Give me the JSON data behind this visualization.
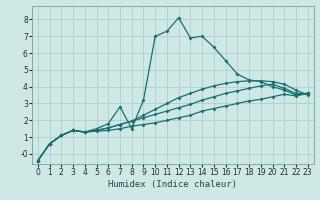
{
  "xlabel": "Humidex (Indice chaleur)",
  "bg_color": "#cde8e5",
  "grid_color": "#b0cfcc",
  "line_color": "#1a7070",
  "xlim": [
    -0.5,
    23.5
  ],
  "ylim": [
    -0.6,
    8.8
  ],
  "xticks": [
    0,
    1,
    2,
    3,
    4,
    5,
    6,
    7,
    8,
    9,
    10,
    11,
    12,
    13,
    14,
    15,
    16,
    17,
    18,
    19,
    20,
    21,
    22,
    23
  ],
  "yticks": [
    0,
    1,
    2,
    3,
    4,
    5,
    6,
    7,
    8
  ],
  "ytick_labels": [
    "-0",
    "1",
    "2",
    "3",
    "4",
    "5",
    "6",
    "7",
    "8"
  ],
  "series1_x": [
    0,
    1,
    2,
    3,
    4,
    5,
    6,
    7,
    8,
    9,
    10,
    11,
    12,
    13,
    14,
    15,
    16,
    17,
    18,
    19,
    20,
    21,
    22,
    23
  ],
  "series1_y": [
    -0.4,
    0.6,
    1.1,
    1.4,
    1.3,
    1.35,
    1.4,
    1.5,
    1.65,
    1.75,
    1.85,
    2.0,
    2.15,
    2.3,
    2.55,
    2.7,
    2.85,
    3.0,
    3.15,
    3.25,
    3.4,
    3.55,
    3.45,
    3.6
  ],
  "series2_x": [
    0,
    1,
    2,
    3,
    4,
    5,
    6,
    7,
    8,
    9,
    10,
    11,
    12,
    13,
    14,
    15,
    16,
    17,
    18,
    19,
    20,
    21,
    22,
    23
  ],
  "series2_y": [
    -0.4,
    0.6,
    1.1,
    1.4,
    1.3,
    1.4,
    1.55,
    1.75,
    1.95,
    2.15,
    2.35,
    2.55,
    2.75,
    2.95,
    3.2,
    3.4,
    3.6,
    3.75,
    3.9,
    4.05,
    4.15,
    3.9,
    3.6,
    3.6
  ],
  "series3_x": [
    0,
    1,
    2,
    3,
    4,
    5,
    6,
    7,
    8,
    9,
    10,
    11,
    12,
    13,
    14,
    15,
    16,
    17,
    18,
    19,
    20,
    21,
    22,
    23
  ],
  "series3_y": [
    -0.4,
    0.6,
    1.1,
    1.4,
    1.3,
    1.4,
    1.55,
    1.75,
    1.95,
    2.3,
    2.65,
    3.0,
    3.35,
    3.6,
    3.85,
    4.05,
    4.2,
    4.3,
    4.35,
    4.35,
    4.3,
    4.15,
    3.8,
    3.5
  ],
  "series4_x": [
    0,
    1,
    2,
    3,
    4,
    5,
    6,
    7,
    8,
    9,
    10,
    11,
    12,
    13,
    14,
    15,
    16,
    17,
    18,
    19,
    20,
    21,
    22,
    23
  ],
  "series4_y": [
    -0.4,
    0.6,
    1.1,
    1.4,
    1.3,
    1.5,
    1.8,
    2.8,
    1.5,
    3.2,
    7.0,
    7.3,
    8.1,
    6.9,
    7.0,
    6.35,
    5.55,
    4.75,
    4.4,
    4.3,
    4.0,
    3.8,
    3.5,
    3.6
  ],
  "markersize": 2.0,
  "linewidth": 0.9
}
